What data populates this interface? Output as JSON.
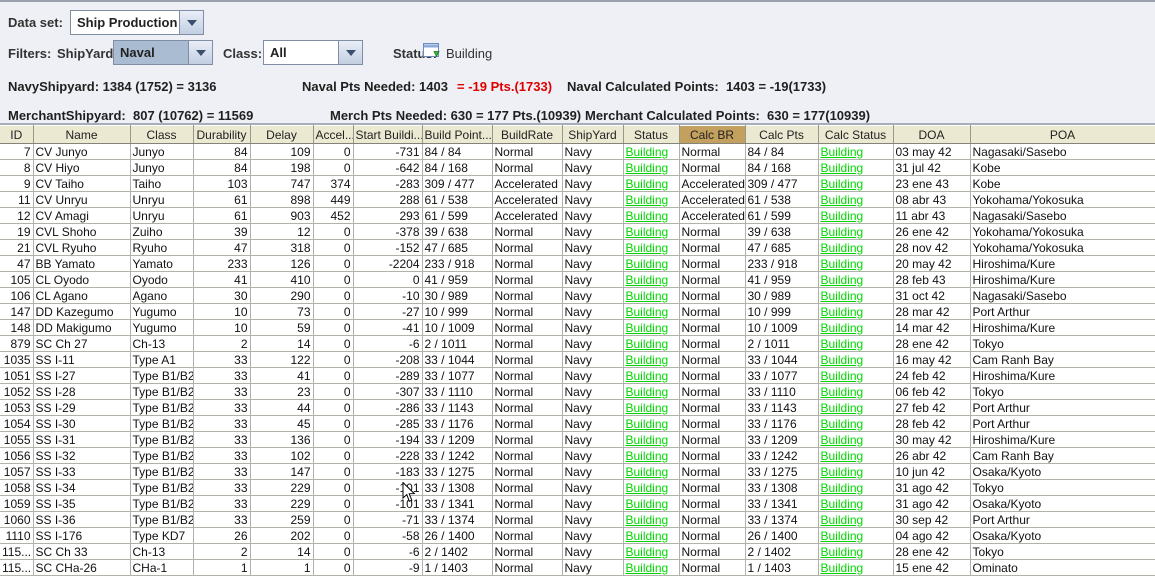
{
  "dataset": {
    "label": "Data set:",
    "value": "Ship Production"
  },
  "filters": {
    "label": "Filters:",
    "shipyard": {
      "label": "ShipYard:",
      "value": "Naval"
    },
    "class": {
      "label": "Class:",
      "value": "All"
    },
    "status": {
      "label": "Status:",
      "value": "Building",
      "icon": "window-green-arrow-icon"
    }
  },
  "stats": {
    "navy_shipyard_label": "NavyShipyard:",
    "navy_shipyard_value": "1384 (1752) = 3136",
    "naval_pts_needed": "Naval Pts Needed: 1403",
    "naval_pts_delta": "= -19 Pts.(1733)",
    "naval_calc_label": "Naval Calculated Points:",
    "naval_calc_value": "1403 = -19(1733)",
    "merchant_shipyard_label": "MerchantShipyard:",
    "merchant_shipyard_value": "807 (10762) = 11569",
    "merch_pts_needed": "Merch Pts Needed: 630 =",
    "merch_pts_delta": "177 Pts.(10939)",
    "merchant_calc_label": "Merchant Calculated Points:",
    "merchant_calc_value": "630 = 177(10939)",
    "delta_negative_color": "#dd0000"
  },
  "table": {
    "status_building_color": "#00d800",
    "calc_br_header_color": "#c3a05e",
    "columns": [
      "ID",
      "Name",
      "Class",
      "Durability",
      "Delay",
      "Accel...",
      "Start Buildi...",
      "Build Point...",
      "BuildRate",
      "ShipYard",
      "Status",
      "Calc BR",
      "Calc Pts",
      "Calc Status",
      "DOA",
      "POA"
    ],
    "rows": [
      [
        "7",
        "CV Junyo",
        "Junyo",
        "84",
        "109",
        "0",
        "-731",
        "84 / 84",
        "Normal",
        "Navy",
        "Building",
        "Normal",
        "84 / 84",
        "Building",
        "03 may 42",
        "Nagasaki/Sasebo"
      ],
      [
        "8",
        "CV Hiyo",
        "Junyo",
        "84",
        "198",
        "0",
        "-642",
        "84 / 168",
        "Normal",
        "Navy",
        "Building",
        "Normal",
        "84 / 168",
        "Building",
        "31 jul 42",
        "Kobe"
      ],
      [
        "9",
        "CV Taiho",
        "Taiho",
        "103",
        "747",
        "374",
        "-283",
        "309 / 477",
        "Accelerated",
        "Navy",
        "Building",
        "Accelerated",
        "309 / 477",
        "Building",
        "23 ene 43",
        "Kobe"
      ],
      [
        "11",
        "CV Unryu",
        "Unryu",
        "61",
        "898",
        "449",
        "288",
        "61 / 538",
        "Accelerated",
        "Navy",
        "Building",
        "Accelerated",
        "61 / 538",
        "Building",
        "08 abr 43",
        "Yokohama/Yokosuka"
      ],
      [
        "12",
        "CV Amagi",
        "Unryu",
        "61",
        "903",
        "452",
        "293",
        "61 / 599",
        "Accelerated",
        "Navy",
        "Building",
        "Accelerated",
        "61 / 599",
        "Building",
        "11 abr 43",
        "Nagasaki/Sasebo"
      ],
      [
        "19",
        "CVL Shoho",
        "Zuiho",
        "39",
        "12",
        "0",
        "-378",
        "39 / 638",
        "Normal",
        "Navy",
        "Building",
        "Normal",
        "39 / 638",
        "Building",
        "26 ene 42",
        "Yokohama/Yokosuka"
      ],
      [
        "21",
        "CVL Ryuho",
        "Ryuho",
        "47",
        "318",
        "0",
        "-152",
        "47 / 685",
        "Normal",
        "Navy",
        "Building",
        "Normal",
        "47 / 685",
        "Building",
        "28 nov 42",
        "Yokohama/Yokosuka"
      ],
      [
        "47",
        "BB Yamato",
        "Yamato",
        "233",
        "126",
        "0",
        "-2204",
        "233 / 918",
        "Normal",
        "Navy",
        "Building",
        "Normal",
        "233 / 918",
        "Building",
        "20 may 42",
        "Hiroshima/Kure"
      ],
      [
        "105",
        "CL Oyodo",
        "Oyodo",
        "41",
        "410",
        "0",
        "0",
        "41 / 959",
        "Normal",
        "Navy",
        "Building",
        "Normal",
        "41 / 959",
        "Building",
        "28 feb 43",
        "Hiroshima/Kure"
      ],
      [
        "106",
        "CL Agano",
        "Agano",
        "30",
        "290",
        "0",
        "-10",
        "30 / 989",
        "Normal",
        "Navy",
        "Building",
        "Normal",
        "30 / 989",
        "Building",
        "31 oct 42",
        "Nagasaki/Sasebo"
      ],
      [
        "147",
        "DD Kazegumo",
        "Yugumo",
        "10",
        "73",
        "0",
        "-27",
        "10 / 999",
        "Normal",
        "Navy",
        "Building",
        "Normal",
        "10 / 999",
        "Building",
        "28 mar 42",
        "Port Arthur"
      ],
      [
        "148",
        "DD Makigumo",
        "Yugumo",
        "10",
        "59",
        "0",
        "-41",
        "10 / 1009",
        "Normal",
        "Navy",
        "Building",
        "Normal",
        "10 / 1009",
        "Building",
        "14 mar 42",
        "Hiroshima/Kure"
      ],
      [
        "879",
        "SC Ch 27",
        "Ch-13",
        "2",
        "14",
        "0",
        "-6",
        "2 / 1011",
        "Normal",
        "Navy",
        "Building",
        "Normal",
        "2 / 1011",
        "Building",
        "28 ene 42",
        "Tokyo"
      ],
      [
        "1035",
        "SS I-11",
        "Type A1",
        "33",
        "122",
        "0",
        "-208",
        "33 / 1044",
        "Normal",
        "Navy",
        "Building",
        "Normal",
        "33 / 1044",
        "Building",
        "16 may 42",
        "Cam Ranh Bay"
      ],
      [
        "1051",
        "SS I-27",
        "Type B1/B2",
        "33",
        "41",
        "0",
        "-289",
        "33 / 1077",
        "Normal",
        "Navy",
        "Building",
        "Normal",
        "33 / 1077",
        "Building",
        "24 feb 42",
        "Hiroshima/Kure"
      ],
      [
        "1052",
        "SS I-28",
        "Type B1/B2",
        "33",
        "23",
        "0",
        "-307",
        "33 / 1110",
        "Normal",
        "Navy",
        "Building",
        "Normal",
        "33 / 1110",
        "Building",
        "06 feb 42",
        "Tokyo"
      ],
      [
        "1053",
        "SS I-29",
        "Type B1/B2",
        "33",
        "44",
        "0",
        "-286",
        "33 / 1143",
        "Normal",
        "Navy",
        "Building",
        "Normal",
        "33 / 1143",
        "Building",
        "27 feb 42",
        "Port Arthur"
      ],
      [
        "1054",
        "SS I-30",
        "Type B1/B2",
        "33",
        "45",
        "0",
        "-285",
        "33 / 1176",
        "Normal",
        "Navy",
        "Building",
        "Normal",
        "33 / 1176",
        "Building",
        "28 feb 42",
        "Port Arthur"
      ],
      [
        "1055",
        "SS I-31",
        "Type B1/B2",
        "33",
        "136",
        "0",
        "-194",
        "33 / 1209",
        "Normal",
        "Navy",
        "Building",
        "Normal",
        "33 / 1209",
        "Building",
        "30 may 42",
        "Hiroshima/Kure"
      ],
      [
        "1056",
        "SS I-32",
        "Type B1/B2",
        "33",
        "102",
        "0",
        "-228",
        "33 / 1242",
        "Normal",
        "Navy",
        "Building",
        "Normal",
        "33 / 1242",
        "Building",
        "26 abr 42",
        "Cam Ranh Bay"
      ],
      [
        "1057",
        "SS I-33",
        "Type B1/B2",
        "33",
        "147",
        "0",
        "-183",
        "33 / 1275",
        "Normal",
        "Navy",
        "Building",
        "Normal",
        "33 / 1275",
        "Building",
        "10 jun 42",
        "Osaka/Kyoto"
      ],
      [
        "1058",
        "SS I-34",
        "Type B1/B2",
        "33",
        "229",
        "0",
        "-101",
        "33 / 1308",
        "Normal",
        "Navy",
        "Building",
        "Normal",
        "33 / 1308",
        "Building",
        "31 ago 42",
        "Tokyo"
      ],
      [
        "1059",
        "SS I-35",
        "Type B1/B2",
        "33",
        "229",
        "0",
        "-101",
        "33 / 1341",
        "Normal",
        "Navy",
        "Building",
        "Normal",
        "33 / 1341",
        "Building",
        "31 ago 42",
        "Osaka/Kyoto"
      ],
      [
        "1060",
        "SS I-36",
        "Type B1/B2",
        "33",
        "259",
        "0",
        "-71",
        "33 / 1374",
        "Normal",
        "Navy",
        "Building",
        "Normal",
        "33 / 1374",
        "Building",
        "30 sep 42",
        "Port Arthur"
      ],
      [
        "1110",
        "SS I-176",
        "Type KD7",
        "26",
        "202",
        "0",
        "-58",
        "26 / 1400",
        "Normal",
        "Navy",
        "Building",
        "Normal",
        "26 / 1400",
        "Building",
        "04 ago 42",
        "Osaka/Kyoto"
      ],
      [
        "115...",
        "SC Ch 33",
        "Ch-13",
        "2",
        "14",
        "0",
        "-6",
        "2 / 1402",
        "Normal",
        "Navy",
        "Building",
        "Normal",
        "2 / 1402",
        "Building",
        "28 ene 42",
        "Tokyo"
      ],
      [
        "115...",
        "SC CHa-26",
        "CHa-1",
        "1",
        "1",
        "0",
        "-9",
        "1 / 1403",
        "Normal",
        "Navy",
        "Building",
        "Normal",
        "1 / 1403",
        "Building",
        "15 ene 42",
        "Ominato"
      ]
    ]
  }
}
